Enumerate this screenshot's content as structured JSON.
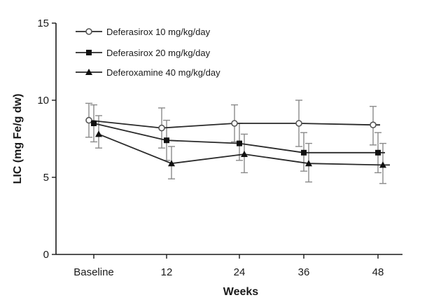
{
  "chart_data": {
    "type": "line",
    "title": "",
    "xlabel": "Weeks",
    "ylabel": "LIC (mg Fe/g dw)",
    "categories": [
      "Baseline",
      "12",
      "24",
      "36",
      "48"
    ],
    "ylim": [
      0,
      15
    ],
    "yticks": [
      0,
      5,
      10,
      15
    ],
    "grid": false,
    "legend_position": "top-left",
    "series": [
      {
        "name": "Deferasirox 10 mg/kg/day",
        "marker": "open-circle",
        "values": [
          8.7,
          8.2,
          8.5,
          8.5,
          8.4
        ],
        "error_low": [
          7.6,
          6.9,
          7.3,
          7.0,
          7.1
        ],
        "error_high": [
          9.8,
          9.5,
          9.7,
          10.0,
          9.6
        ]
      },
      {
        "name": "Deferasirox 20 mg/kg/day",
        "marker": "filled-square",
        "values": [
          8.5,
          7.4,
          7.2,
          6.6,
          6.6
        ],
        "error_low": [
          7.3,
          6.1,
          6.1,
          5.4,
          5.3
        ],
        "error_high": [
          9.7,
          8.7,
          8.5,
          7.9,
          7.9
        ]
      },
      {
        "name": "Deferoxamine 40 mg/kg/day",
        "marker": "filled-triangle",
        "values": [
          7.8,
          5.9,
          6.5,
          5.9,
          5.8
        ],
        "error_low": [
          6.9,
          4.9,
          5.3,
          4.7,
          4.6
        ],
        "error_high": [
          9.0,
          7.0,
          7.8,
          7.2,
          7.2
        ]
      }
    ]
  }
}
